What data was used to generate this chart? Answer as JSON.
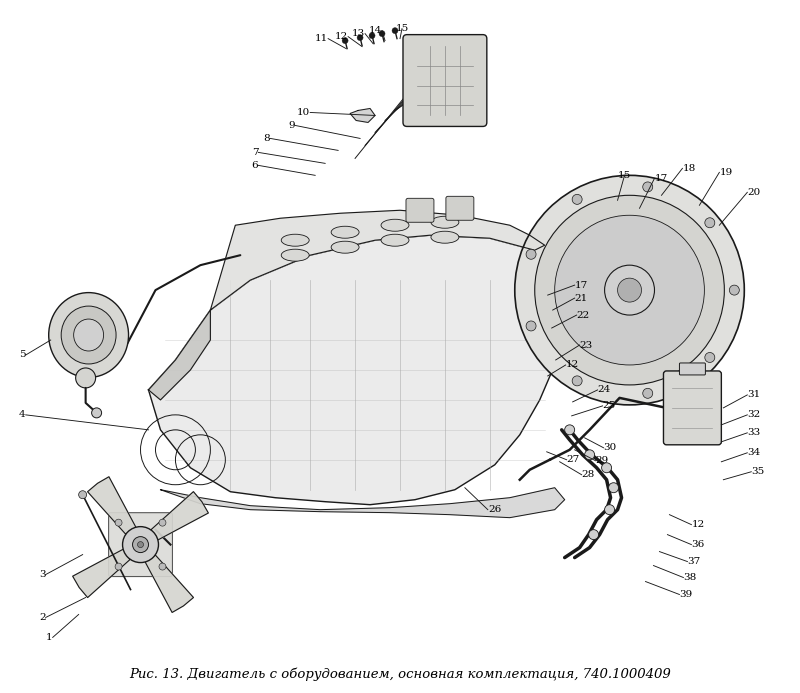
{
  "caption": "Рис. 13. Двигатель с оборудованием, основная комплектация, 740.1000409",
  "caption_fontsize": 9.5,
  "bg_color": "#ffffff",
  "line_color": "#1a1a1a",
  "fill_light": "#e8e8e8",
  "fill_mid": "#d0d0d0",
  "fill_dark": "#b0b0b0",
  "fig_width": 8.0,
  "fig_height": 6.93,
  "dpi": 100,
  "label_fontsize": 7.5
}
